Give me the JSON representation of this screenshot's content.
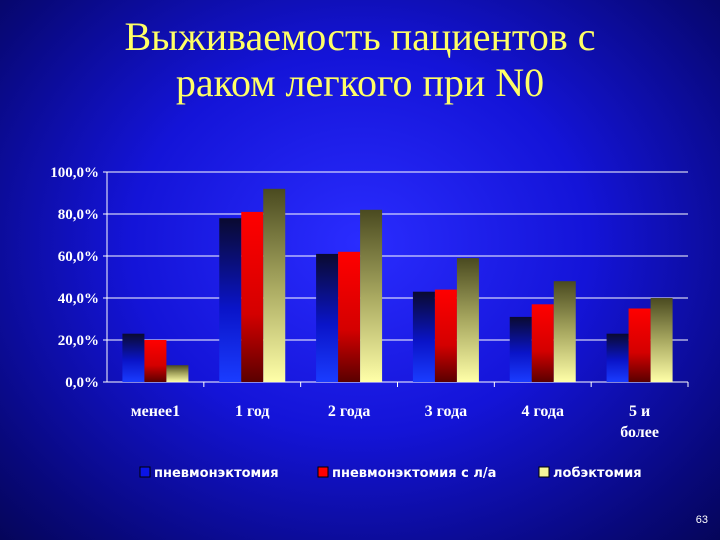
{
  "title_line1": "Выживаемость пациентов с",
  "title_line2": "раком легкого при N0",
  "page_number": "63",
  "colors": {
    "series1": "#0a14e6",
    "series2": "#ff0000",
    "series3": "#f5f59a",
    "grid": "#ffffff",
    "text": "#ffffff",
    "title": "#ffff66"
  },
  "chart_data": {
    "type": "bar",
    "title": "",
    "xlabel": "",
    "ylabel": "",
    "ylim": [
      0,
      100
    ],
    "y_ticks": [
      "0,0%",
      "20,0%",
      "40,0%",
      "60,0%",
      "80,0%",
      "100,0%"
    ],
    "categories": [
      [
        "менее1"
      ],
      [
        "1 год"
      ],
      [
        "2 года"
      ],
      [
        "3 года"
      ],
      [
        "4 года"
      ],
      [
        "5   и",
        "более"
      ]
    ],
    "series": [
      {
        "name": "пневмонэктомия",
        "values": [
          23,
          78,
          61,
          43,
          31,
          23
        ]
      },
      {
        "name": "пневмонэктомия с л/а",
        "values": [
          20,
          81,
          62,
          44,
          37,
          35
        ]
      },
      {
        "name": "лобэктомия",
        "values": [
          8,
          92,
          82,
          59,
          48,
          40
        ]
      }
    ],
    "grid": true,
    "legend_position": "bottom"
  }
}
